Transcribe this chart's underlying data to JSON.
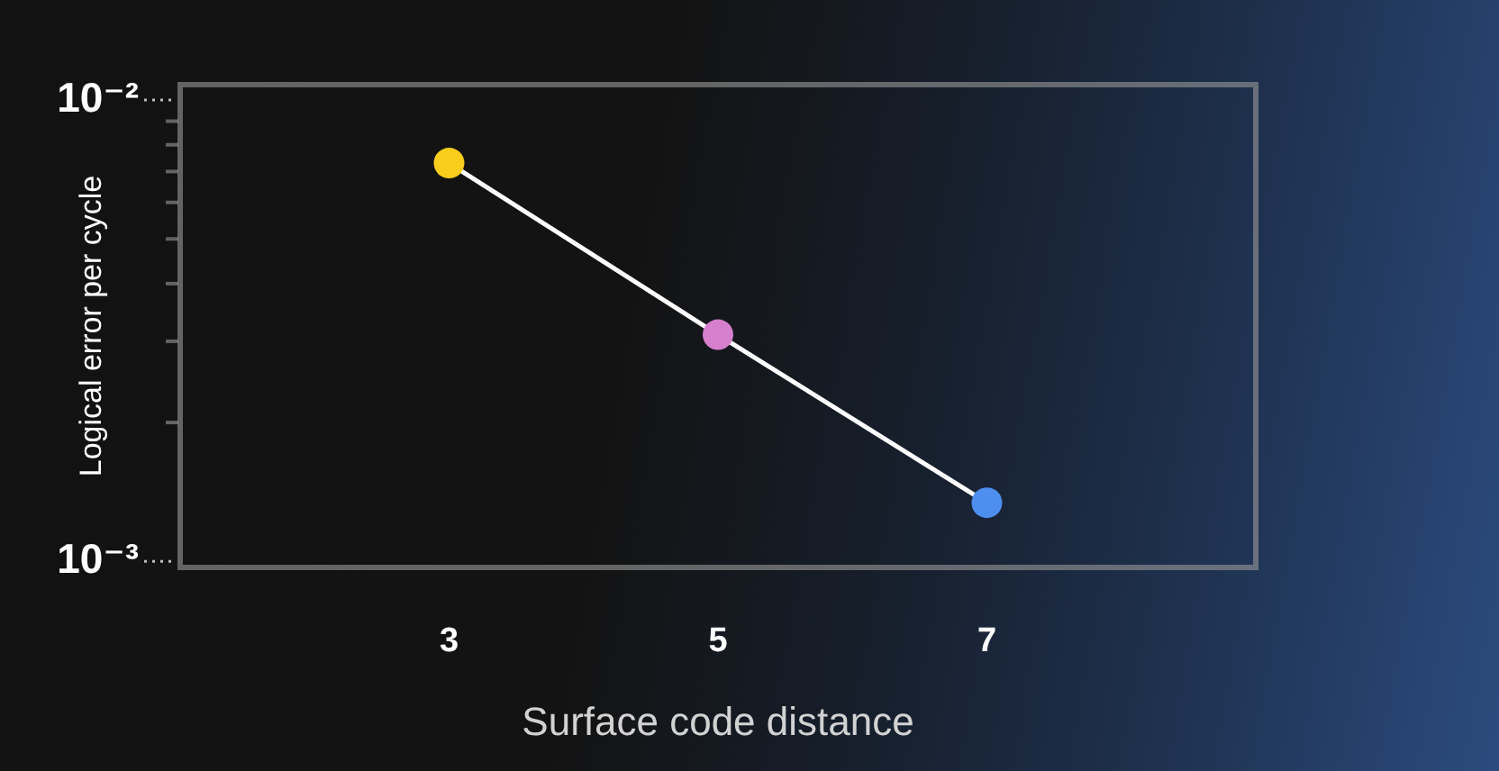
{
  "chart_data": {
    "type": "line",
    "xlabel": "Surface code distance",
    "ylabel": "Logical error per cycle",
    "x": [
      3,
      5,
      7
    ],
    "xlim": [
      1,
      9
    ],
    "xticks": [
      3,
      5,
      7
    ],
    "ylim": [
      0.00097,
      0.0108
    ],
    "yticks": [
      {
        "value": 0.01,
        "label": "10⁻²"
      },
      {
        "value": 0.009,
        "label": null
      },
      {
        "value": 0.008,
        "label": null
      },
      {
        "value": 0.007,
        "label": null
      },
      {
        "value": 0.006,
        "label": null
      },
      {
        "value": 0.005,
        "label": null
      },
      {
        "value": 0.004,
        "label": null
      },
      {
        "value": 0.003,
        "label": null
      },
      {
        "value": 0.002,
        "label": null
      },
      {
        "value": 0.001,
        "label": "10⁻³"
      }
    ],
    "log": "y",
    "marker": "circle",
    "line_style": "solid",
    "series": [
      {
        "color": "#ffffff",
        "colors": [
          "#f8cd1c",
          "#d67fcc",
          "#4d8eef"
        ],
        "values": [
          0.0073,
          0.0031,
          0.00134
        ]
      }
    ]
  }
}
